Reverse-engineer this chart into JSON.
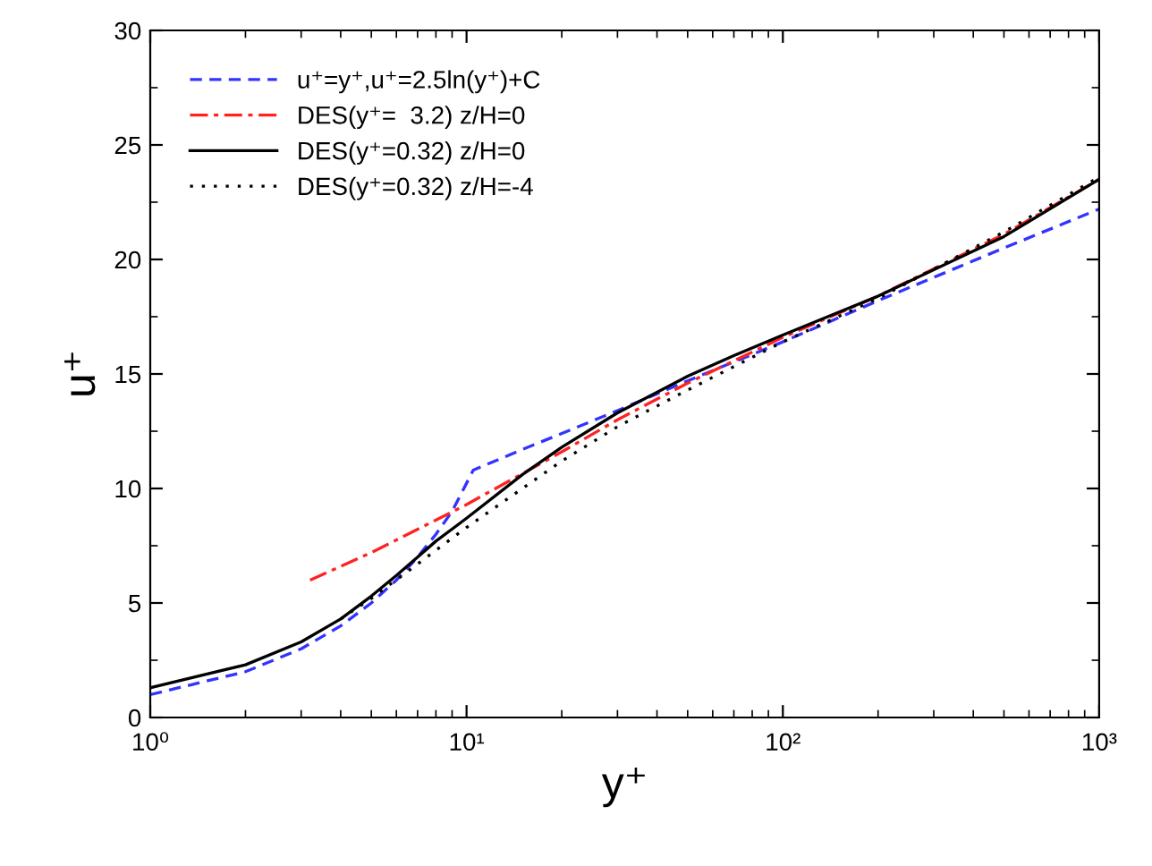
{
  "chart_data": {
    "type": "line",
    "xlabel": "y⁺",
    "ylabel": "u⁺",
    "log": "x",
    "xlim": [
      1,
      1000
    ],
    "ylim": [
      0,
      30
    ],
    "xticks": [
      {
        "value": 1,
        "label": "10⁰"
      },
      {
        "value": 10,
        "label": "10¹"
      },
      {
        "value": 100,
        "label": "10²"
      },
      {
        "value": 1000,
        "label": "10³"
      }
    ],
    "yticks": [
      0,
      5,
      10,
      15,
      20,
      25,
      30
    ],
    "grid": false,
    "legend": "top left",
    "series": [
      {
        "name": "u⁺=y⁺,u⁺=2.5ln(y⁺)+C",
        "color": "#3333ff",
        "line_style": "dashed",
        "x": [
          1,
          2,
          3,
          4,
          5,
          6,
          7,
          8,
          9,
          10.5,
          15,
          20,
          30,
          50,
          100,
          200,
          500,
          1000
        ],
        "values": [
          1,
          2,
          3,
          4,
          5,
          6,
          7,
          8,
          9,
          10.8,
          11.7,
          12.4,
          13.4,
          14.7,
          16.4,
          18.2,
          20.5,
          22.2
        ]
      },
      {
        "name": "DES(y⁺=  3.2) z/H=0",
        "color": "#ff2222",
        "line_style": "dashdot",
        "x": [
          3.2,
          5,
          10,
          20,
          30,
          50,
          100,
          200,
          500,
          1000
        ],
        "values": [
          6.0,
          7.2,
          9.3,
          11.6,
          13.0,
          14.6,
          16.6,
          18.4,
          21.1,
          23.5
        ]
      },
      {
        "name": "DES(y⁺=0.32) z/H=0",
        "color": "#000000",
        "line_style": "solid",
        "x": [
          1,
          2,
          3,
          4,
          5,
          6,
          7,
          8,
          10,
          15,
          20,
          30,
          50,
          70,
          100,
          200,
          500,
          1000
        ],
        "values": [
          1.3,
          2.3,
          3.3,
          4.3,
          5.3,
          6.2,
          7.0,
          7.7,
          8.7,
          10.6,
          11.8,
          13.3,
          14.9,
          15.8,
          16.7,
          18.4,
          21.0,
          23.5
        ]
      },
      {
        "name": "DES(y⁺=0.32) z/H=-4",
        "color": "#000000",
        "line_style": "dotted",
        "x": [
          4,
          5,
          7,
          10,
          20,
          30,
          50,
          100,
          200,
          500,
          1000
        ],
        "values": [
          4.3,
          5.2,
          6.7,
          8.3,
          11.2,
          12.7,
          14.3,
          16.4,
          18.3,
          21.2,
          23.6
        ]
      }
    ]
  }
}
